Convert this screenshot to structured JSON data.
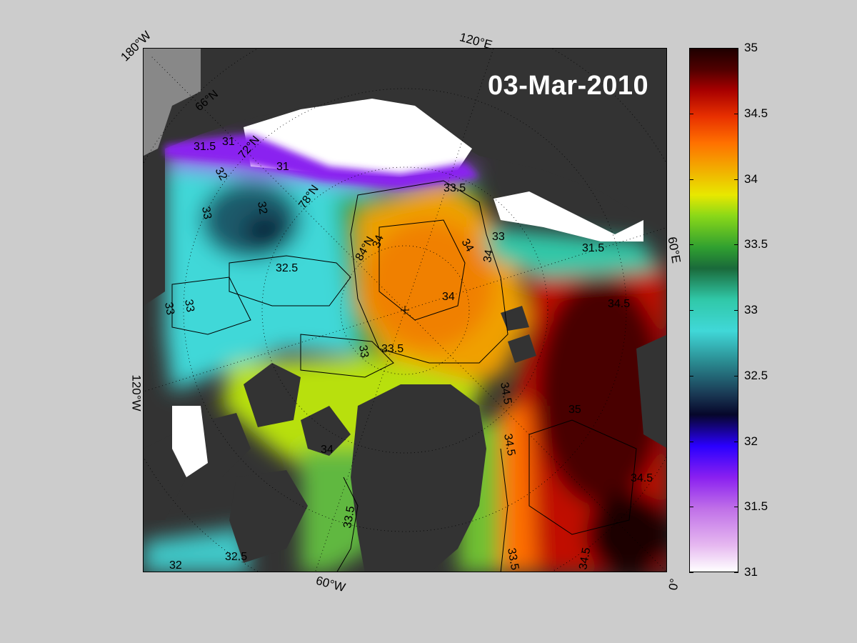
{
  "date_stamp": "03-Mar-2010",
  "edge_labels": {
    "top_left": "180°W",
    "top": "120°E",
    "right": "60°E",
    "left": "120°W",
    "bottom": "60°W",
    "bottom_right": "0°"
  },
  "latitude_labels": [
    "66°N",
    "72°N",
    "78°N",
    "84°N"
  ],
  "contour_labels": [
    "31.5",
    "31",
    "31",
    "32",
    "32",
    "32.5",
    "33",
    "33",
    "33",
    "33",
    "33.5",
    "33.5",
    "34",
    "34",
    "34",
    "34",
    "34",
    "33.5",
    "33.5",
    "34.5",
    "34.5",
    "34.5",
    "35",
    "32.5",
    "32",
    "34.5",
    "34.5",
    "31.5",
    "33"
  ],
  "colorbar": {
    "min": 31,
    "max": 35,
    "ticks": [
      "35",
      "34.5",
      "34",
      "33.5",
      "33",
      "32.5",
      "32",
      "31.5",
      "31"
    ],
    "colors": {
      "fresh": "#ffffff",
      "purple": "#8a20f0",
      "blue": "#2a00ff",
      "cyan": "#40d8d8",
      "green": "#30a030",
      "yellow": "#e8e800",
      "orange": "#ff7000",
      "red": "#e83000",
      "dark_red": "#500000"
    }
  },
  "land_color": "#333333",
  "ice_color": "#ffffff"
}
